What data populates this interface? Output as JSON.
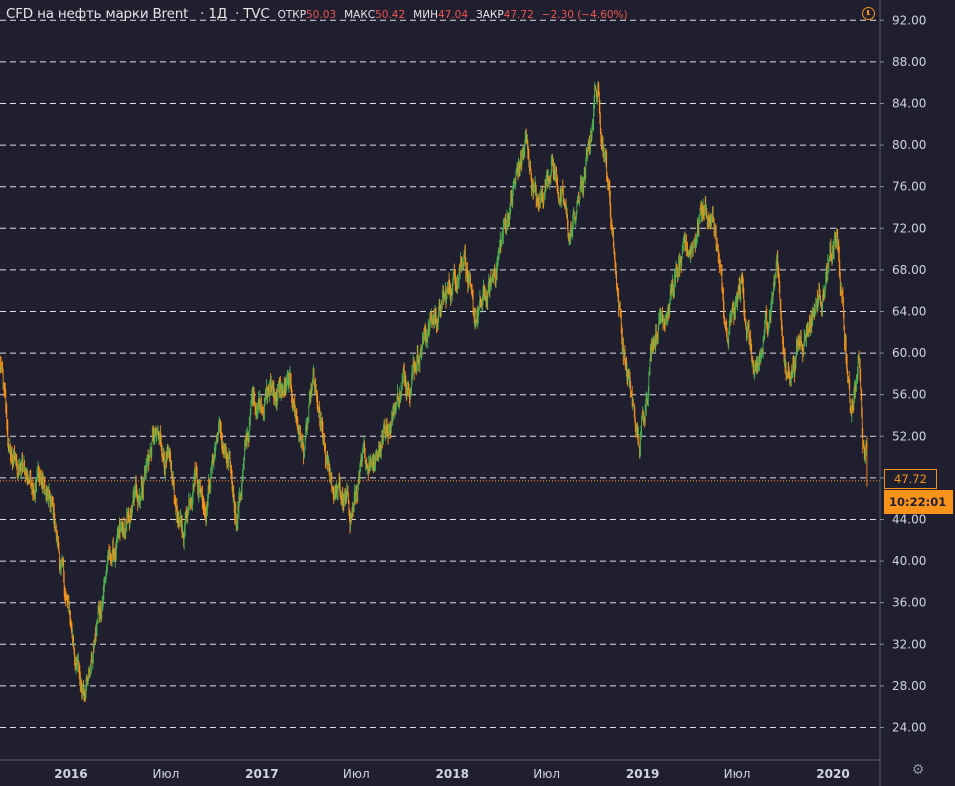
{
  "legend": {
    "symbol": "CFD на нефть марки Brent",
    "interval": "1Д",
    "source": "TVC",
    "open_label": "ОТКР",
    "open_value": "50.03",
    "high_label": "МАКС",
    "high_value": "50.42",
    "low_label": "МИН",
    "low_value": "47.04",
    "close_label": "ЗАКР",
    "close_value": "47.72",
    "change": "−2.30 (−4.60%)"
  },
  "price_tag": "47.72",
  "time_tag": "10:22:01",
  "settings_icon": "gear-icon",
  "alert_icon": "clock-icon",
  "colors": {
    "background": "#1f1f30",
    "up": "#4caf50",
    "down": "#f7931a",
    "grid": "#ffffff",
    "price_line": "#f7931a",
    "change": "#ef5350"
  },
  "chart_data": {
    "type": "candlestick",
    "title": "CFD на нефть марки Brent",
    "ylim": [
      21.5,
      93.5
    ],
    "y_ticks": [
      "92.00",
      "88.00",
      "84.00",
      "80.00",
      "76.00",
      "72.00",
      "68.00",
      "64.00",
      "60.00",
      "56.00",
      "52.00",
      "48.00",
      "44.00",
      "40.00",
      "36.00",
      "32.00",
      "28.00",
      "24.00"
    ],
    "y_tick_values": [
      92,
      88,
      84,
      80,
      76,
      72,
      68,
      64,
      60,
      56,
      52,
      48,
      44,
      40,
      36,
      32,
      28,
      24
    ],
    "x_ticks": [
      "2016",
      "Июл",
      "2017",
      "Июл",
      "2018",
      "Июл",
      "2019",
      "Июл",
      "2020"
    ],
    "x_tick_dates": [
      "2016-01-01",
      "2016-07-01",
      "2017-01-01",
      "2017-07-01",
      "2018-01-01",
      "2018-07-01",
      "2019-01-01",
      "2019-07-01",
      "2020-01-01"
    ],
    "x_range": [
      "2015-08-18",
      "2020-03-10"
    ],
    "grid": "horizontal dashed",
    "last_price": 47.72,
    "series": [
      {
        "points": [
          [
            "2015-08-18",
            59.5
          ],
          [
            "2015-09-05",
            50.0
          ],
          [
            "2015-10-10",
            48.0
          ],
          [
            "2015-11-01",
            48.5
          ],
          [
            "2015-12-01",
            43.5
          ],
          [
            "2015-12-20",
            37.0
          ],
          [
            "2016-01-20",
            27.8
          ],
          [
            "2016-02-10",
            30.5
          ],
          [
            "2016-03-10",
            39.5
          ],
          [
            "2016-04-15",
            42.5
          ],
          [
            "2016-05-20",
            48.5
          ],
          [
            "2016-06-08",
            52.0
          ],
          [
            "2016-07-01",
            50.0
          ],
          [
            "2016-08-02",
            42.0
          ],
          [
            "2016-08-25",
            49.5
          ],
          [
            "2016-09-15",
            46.0
          ],
          [
            "2016-10-10",
            53.0
          ],
          [
            "2016-11-14",
            44.5
          ],
          [
            "2016-12-15",
            55.5
          ],
          [
            "2017-01-20",
            56.5
          ],
          [
            "2017-02-28",
            56.0
          ],
          [
            "2017-03-22",
            50.5
          ],
          [
            "2017-04-10",
            56.5
          ],
          [
            "2017-05-05",
            48.5
          ],
          [
            "2017-06-20",
            44.5
          ],
          [
            "2017-07-20",
            49.5
          ],
          [
            "2017-08-20",
            52.0
          ],
          [
            "2017-09-20",
            56.0
          ],
          [
            "2017-10-25",
            60.0
          ],
          [
            "2017-11-20",
            63.0
          ],
          [
            "2017-12-20",
            65.0
          ],
          [
            "2018-01-25",
            70.5
          ],
          [
            "2018-02-10",
            62.5
          ],
          [
            "2018-03-15",
            66.0
          ],
          [
            "2018-04-20",
            74.0
          ],
          [
            "2018-05-22",
            80.0
          ],
          [
            "2018-06-15",
            73.5
          ],
          [
            "2018-07-10",
            79.0
          ],
          [
            "2018-08-15",
            71.0
          ],
          [
            "2018-09-20",
            79.0
          ],
          [
            "2018-10-03",
            86.0
          ],
          [
            "2018-10-20",
            80.0
          ],
          [
            "2018-11-25",
            60.5
          ],
          [
            "2018-12-26",
            50.5
          ],
          [
            "2019-01-20",
            62.0
          ],
          [
            "2019-02-25",
            66.0
          ],
          [
            "2019-04-10",
            71.0
          ],
          [
            "2019-04-25",
            74.5
          ],
          [
            "2019-05-20",
            72.0
          ],
          [
            "2019-06-12",
            60.5
          ],
          [
            "2019-07-10",
            66.5
          ],
          [
            "2019-08-07",
            56.5
          ],
          [
            "2019-09-16",
            69.0
          ],
          [
            "2019-10-03",
            57.5
          ],
          [
            "2019-11-10",
            62.5
          ],
          [
            "2019-12-25",
            68.0
          ],
          [
            "2020-01-08",
            71.0
          ],
          [
            "2020-02-03",
            54.5
          ],
          [
            "2020-02-20",
            59.5
          ],
          [
            "2020-02-28",
            51.0
          ],
          [
            "2020-03-05",
            51.8
          ],
          [
            "2020-03-06",
            47.72
          ]
        ]
      }
    ]
  }
}
